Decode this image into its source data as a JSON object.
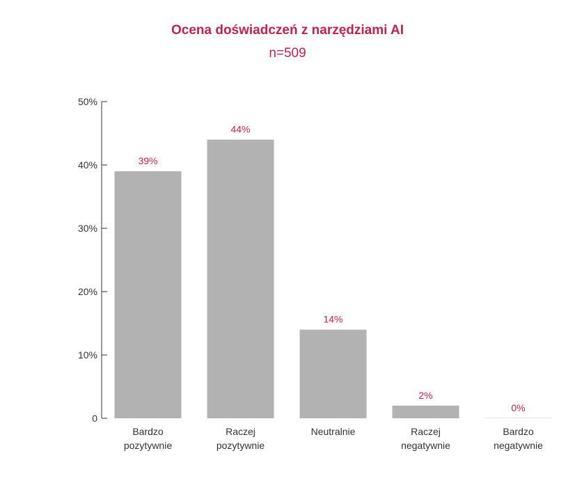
{
  "chart_data": {
    "type": "bar",
    "title": "Ocena doświadczeń z narzędziami AI",
    "subtitle": "n=509",
    "categories": [
      [
        "Bardzo",
        "pozytywnie"
      ],
      [
        "Raczej",
        "pozytywnie"
      ],
      [
        "Neutralnie"
      ],
      [
        "Raczej",
        "negatywnie"
      ],
      [
        "Bardzo",
        "negatywnie"
      ]
    ],
    "values": [
      39,
      44,
      14,
      2,
      0
    ],
    "data_labels": [
      "39%",
      "44%",
      "14%",
      "2%",
      "0%"
    ],
    "ylim": [
      0,
      50
    ],
    "yticks": [
      0,
      10,
      20,
      30,
      40,
      50
    ],
    "ytick_labels": [
      "0",
      "10%",
      "20%",
      "30%",
      "40%",
      "50%"
    ],
    "xlabel": "",
    "ylabel": "",
    "grid": false,
    "legend": "none",
    "colors": {
      "bar": "#b2b2b2",
      "accent": "#c0234a",
      "axis": "#333333"
    }
  }
}
